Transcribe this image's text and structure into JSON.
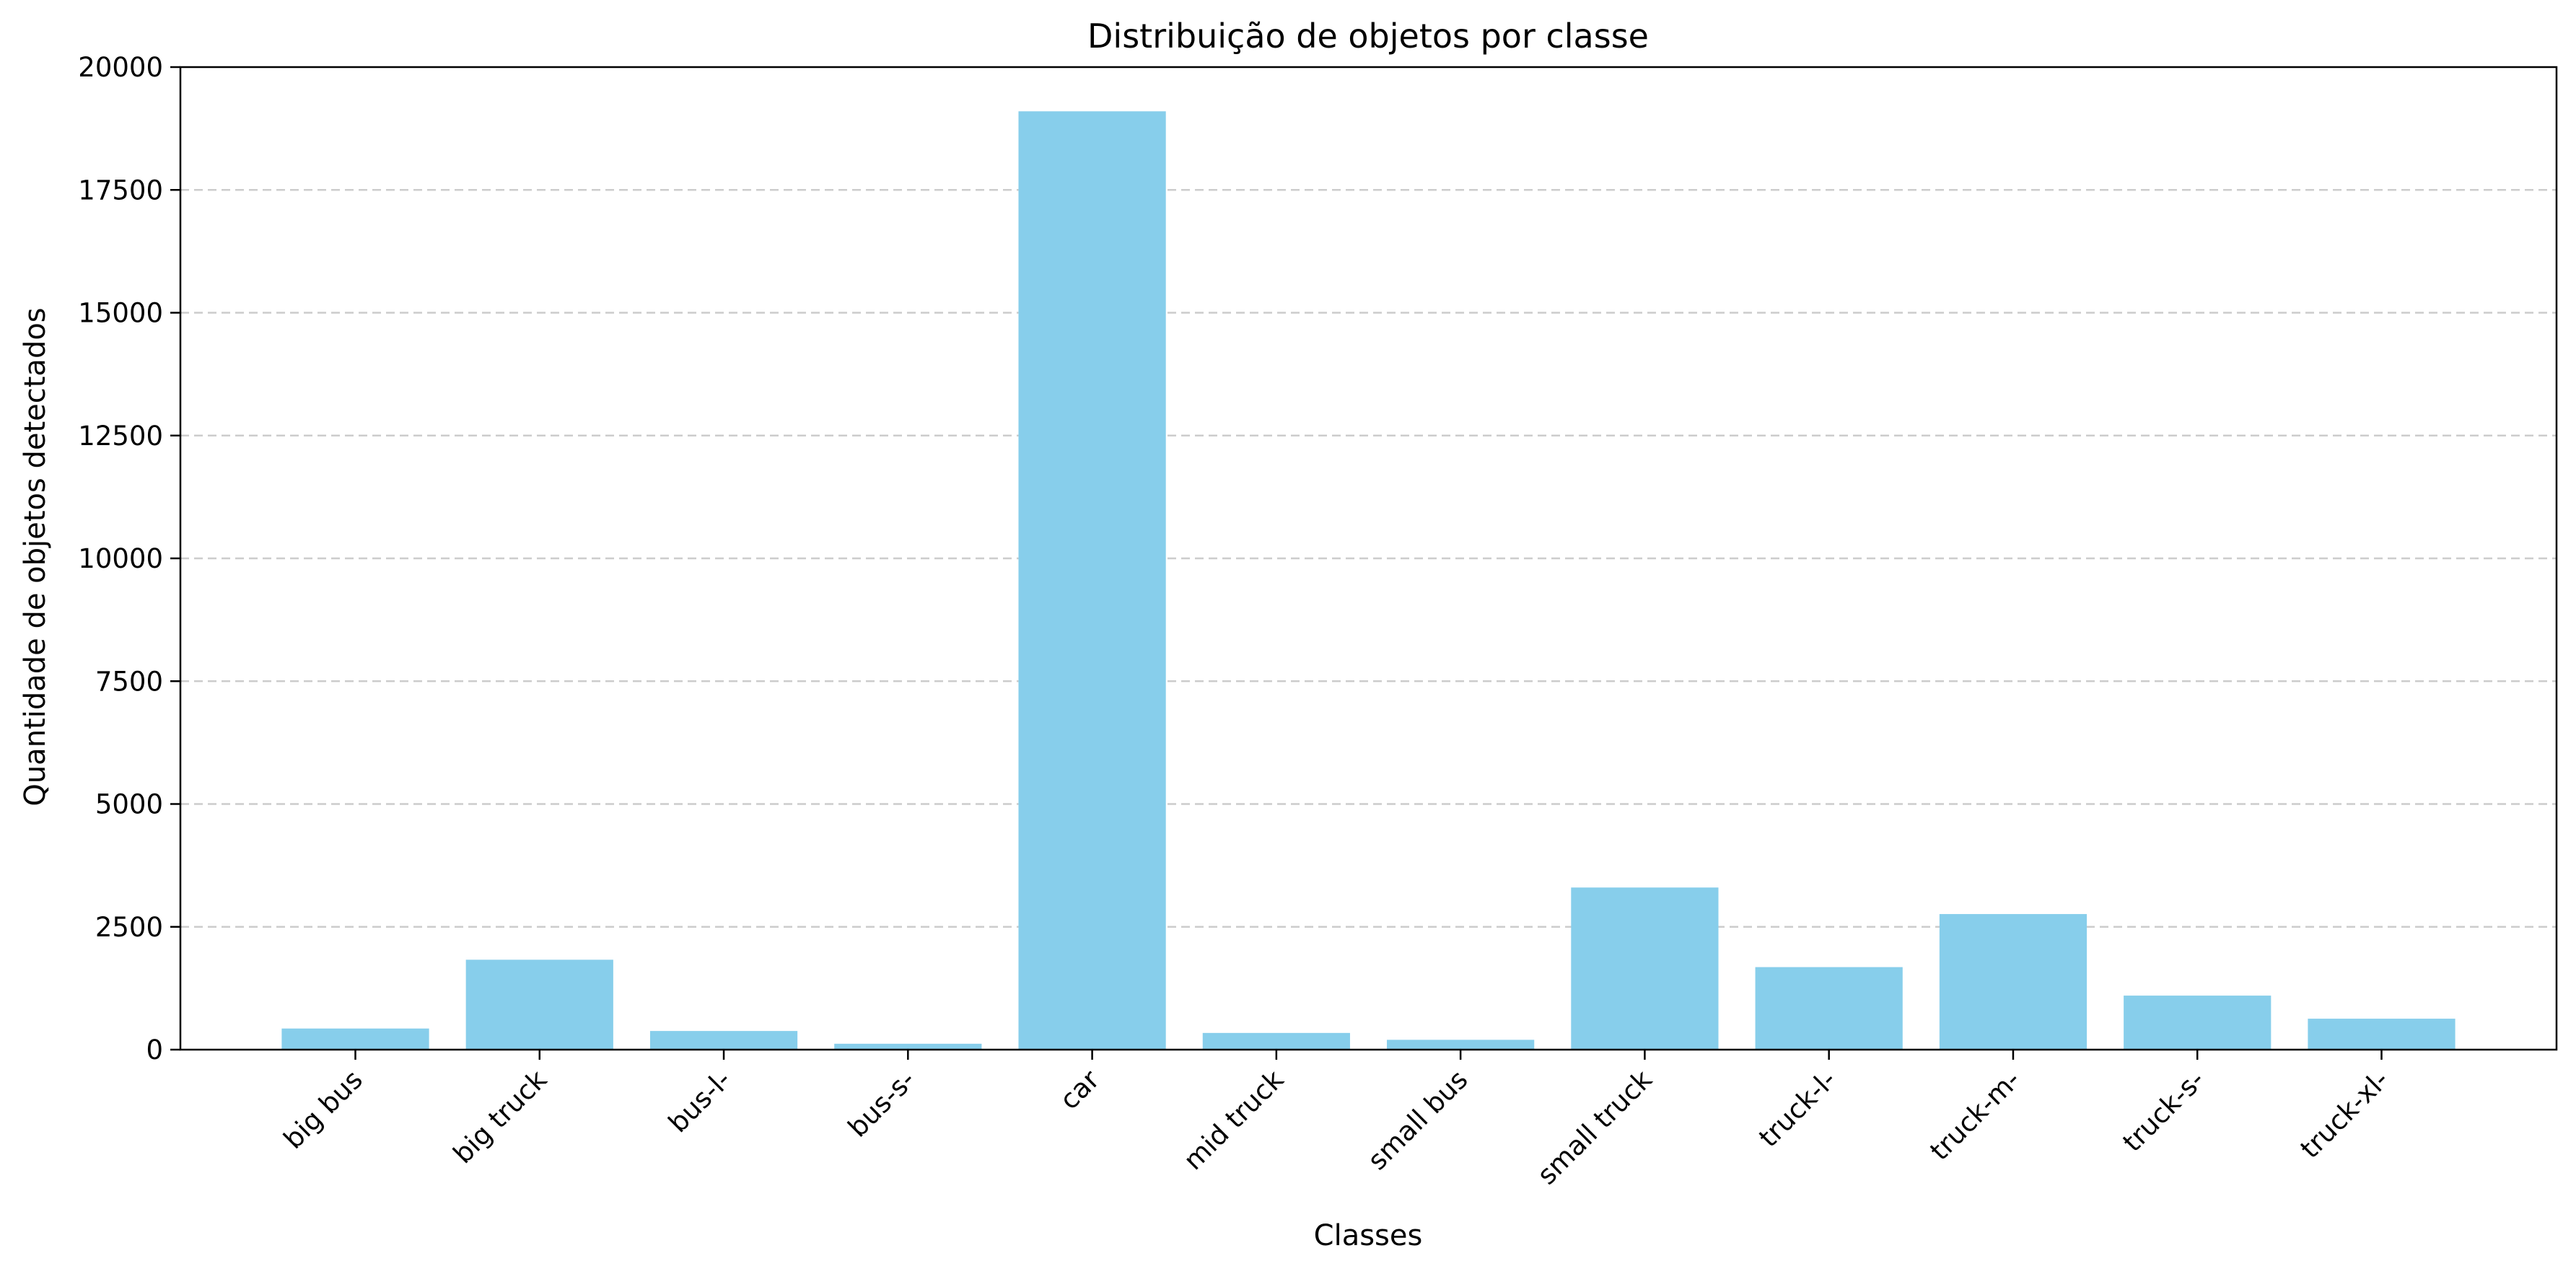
{
  "chart_data": {
    "type": "bar",
    "title": "Distribuição de objetos por classe",
    "xlabel": "Classes",
    "ylabel": "Quantidade de objetos detectados",
    "categories": [
      "big bus",
      "big truck",
      "bus-l-",
      "bus-s-",
      "car",
      "mid truck",
      "small bus",
      "small truck",
      "truck-l-",
      "truck-m-",
      "truck-s-",
      "truck-xl-"
    ],
    "values": [
      430,
      1830,
      380,
      120,
      19100,
      340,
      200,
      3300,
      1680,
      2760,
      1100,
      630
    ],
    "ylim": [
      0,
      20000
    ],
    "yticks": [
      0,
      2500,
      5000,
      7500,
      10000,
      12500,
      15000,
      17500,
      20000
    ],
    "bar_color": "#87ceeb",
    "grid": {
      "axis": "y",
      "style": "dashed",
      "color": "#cccccc"
    },
    "xtick_rotation": 45
  }
}
